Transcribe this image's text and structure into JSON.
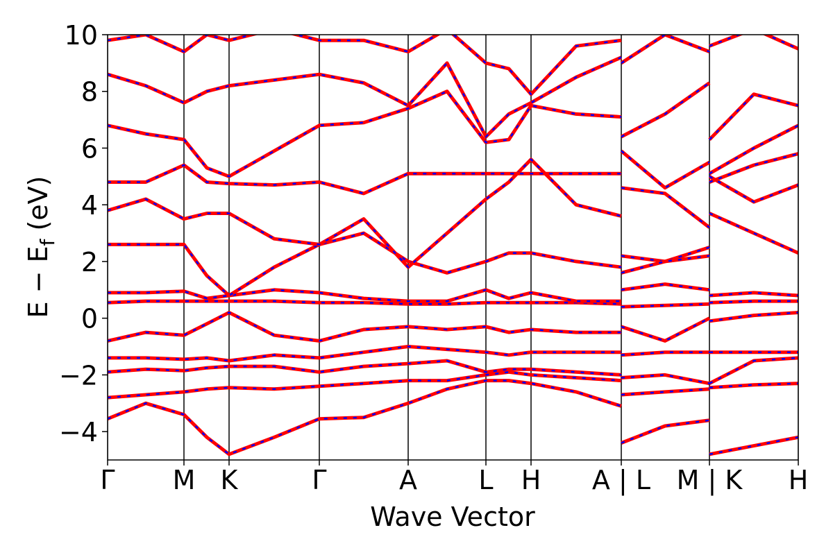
{
  "chart_data": {
    "type": "line",
    "xlabel": "Wave Vector",
    "ylabel": [
      "E − E",
      "f",
      " (eV)"
    ],
    "x": [
      0,
      0.55,
      1.1,
      1.43,
      1.75,
      2.4,
      3.05,
      3.69,
      4.33,
      4.89,
      5.45,
      5.78,
      6.1,
      6.75,
      7.4,
      7.4,
      7.4,
      8.03,
      8.67,
      8.67,
      8.67,
      9.31,
      9.95
    ],
    "xlim": [
      0,
      9.95
    ],
    "xticks": [
      {
        "value": 0,
        "label": "Γ"
      },
      {
        "value": 1.1,
        "label": "M"
      },
      {
        "value": 1.75,
        "label": "K"
      },
      {
        "value": 3.05,
        "label": "Γ"
      },
      {
        "value": 4.33,
        "label": "A"
      },
      {
        "value": 5.45,
        "label": "L"
      },
      {
        "value": 6.1,
        "label": "H"
      },
      {
        "value": 7.4,
        "label": "A | L"
      },
      {
        "value": 8.67,
        "label": "M | K"
      },
      {
        "value": 9.95,
        "label": "H"
      }
    ],
    "ylim": [
      -5,
      10
    ],
    "yticks": [
      {
        "value": -4,
        "label": "−4"
      },
      {
        "value": -2,
        "label": "−2"
      },
      0,
      2,
      4,
      6,
      8,
      10
    ],
    "color": "#ff0000",
    "dash_color": "#0000ff",
    "kpoint_lines": true,
    "series": [
      {
        "values": [
          -3.55,
          -3.0,
          -3.4,
          -4.2,
          -4.8,
          -4.2,
          -3.55,
          -3.5,
          -3.0,
          -2.5,
          -2.2,
          -2.2,
          -2.3,
          -2.6,
          -3.1,
          null,
          -4.4,
          -3.8,
          -3.6,
          null,
          -4.8,
          -4.5,
          -4.2
        ]
      },
      {
        "values": [
          -2.8,
          -2.7,
          -2.6,
          -2.5,
          -2.45,
          -2.5,
          -2.4,
          -2.3,
          -2.2,
          -2.2,
          -2.0,
          -1.9,
          -2.0,
          -2.1,
          -2.2,
          null,
          -2.7,
          -2.6,
          -2.5,
          null,
          -2.45,
          -2.35,
          -2.3
        ]
      },
      {
        "values": [
          -1.9,
          -1.8,
          -1.85,
          -1.75,
          -1.7,
          -1.7,
          -1.9,
          -1.7,
          -1.6,
          -1.5,
          -1.9,
          -1.8,
          -1.8,
          -1.9,
          -2.0,
          null,
          -2.1,
          -2.0,
          -2.3,
          null,
          -2.3,
          -1.5,
          -1.4
        ]
      },
      {
        "values": [
          -1.4,
          -1.4,
          -1.45,
          -1.4,
          -1.5,
          -1.3,
          -1.4,
          -1.2,
          -1.0,
          -1.1,
          -1.2,
          -1.3,
          -1.2,
          -1.2,
          -1.2,
          null,
          -1.3,
          -1.2,
          -1.2,
          null,
          -1.2,
          -1.2,
          -1.2
        ]
      },
      {
        "values": [
          -0.8,
          -0.5,
          -0.6,
          -0.2,
          0.2,
          -0.6,
          -0.8,
          -0.4,
          -0.3,
          -0.4,
          -0.3,
          -0.5,
          -0.4,
          -0.5,
          -0.5,
          null,
          -0.3,
          -0.8,
          0.0,
          null,
          -0.1,
          0.1,
          0.2
        ]
      },
      {
        "values": [
          0.55,
          0.6,
          0.6,
          0.6,
          0.6,
          0.6,
          0.55,
          0.55,
          0.5,
          0.5,
          0.55,
          0.55,
          0.55,
          0.55,
          0.5,
          null,
          0.4,
          0.45,
          0.5,
          null,
          0.55,
          0.6,
          0.6
        ]
      },
      {
        "values": [
          0.9,
          0.9,
          0.95,
          0.7,
          0.8,
          1.0,
          0.9,
          0.7,
          0.6,
          0.6,
          1.0,
          0.7,
          0.9,
          0.6,
          0.6,
          null,
          1.0,
          1.2,
          1.0,
          null,
          0.8,
          0.9,
          0.8
        ]
      },
      {
        "values": [
          2.6,
          2.6,
          2.6,
          1.5,
          0.8,
          1.8,
          2.6,
          3.0,
          2.0,
          1.6,
          2.0,
          2.3,
          2.3,
          2.0,
          1.8,
          null,
          2.2,
          2.0,
          2.5,
          null,
          3.7,
          3.0,
          2.3
        ]
      },
      {
        "values": [
          3.8,
          4.2,
          3.5,
          3.7,
          3.7,
          2.8,
          2.6,
          3.5,
          1.8,
          3.0,
          4.2,
          4.8,
          5.6,
          4.0,
          3.6,
          null,
          1.6,
          2.0,
          2.2,
          null,
          5.0,
          4.1,
          4.7
        ]
      },
      {
        "values": [
          4.8,
          4.8,
          5.4,
          4.8,
          4.75,
          4.7,
          4.8,
          4.4,
          5.1,
          5.1,
          5.1,
          5.1,
          5.1,
          5.1,
          5.1,
          null,
          4.6,
          4.4,
          3.2,
          null,
          4.8,
          5.4,
          5.8
        ]
      },
      {
        "values": [
          6.8,
          6.5,
          6.3,
          5.3,
          5.0,
          5.9,
          6.8,
          6.9,
          7.4,
          8.0,
          6.2,
          6.3,
          7.5,
          7.2,
          7.1,
          null,
          5.9,
          4.6,
          5.5,
          null,
          5.1,
          6.0,
          6.8
        ]
      },
      {
        "values": [
          8.6,
          8.2,
          7.6,
          8.0,
          8.2,
          8.4,
          8.6,
          8.3,
          7.5,
          9.0,
          6.4,
          7.2,
          7.6,
          8.5,
          9.2,
          null,
          6.4,
          7.2,
          8.3,
          null,
          6.3,
          7.9,
          7.5
        ]
      },
      {
        "values": [
          9.8,
          10.0,
          9.4,
          10.0,
          9.8,
          10.2,
          9.8,
          9.8,
          9.4,
          10.2,
          9.0,
          8.8,
          7.9,
          9.6,
          9.8,
          null,
          9.0,
          10.0,
          9.4,
          null,
          9.6,
          10.2,
          9.5
        ]
      }
    ]
  }
}
